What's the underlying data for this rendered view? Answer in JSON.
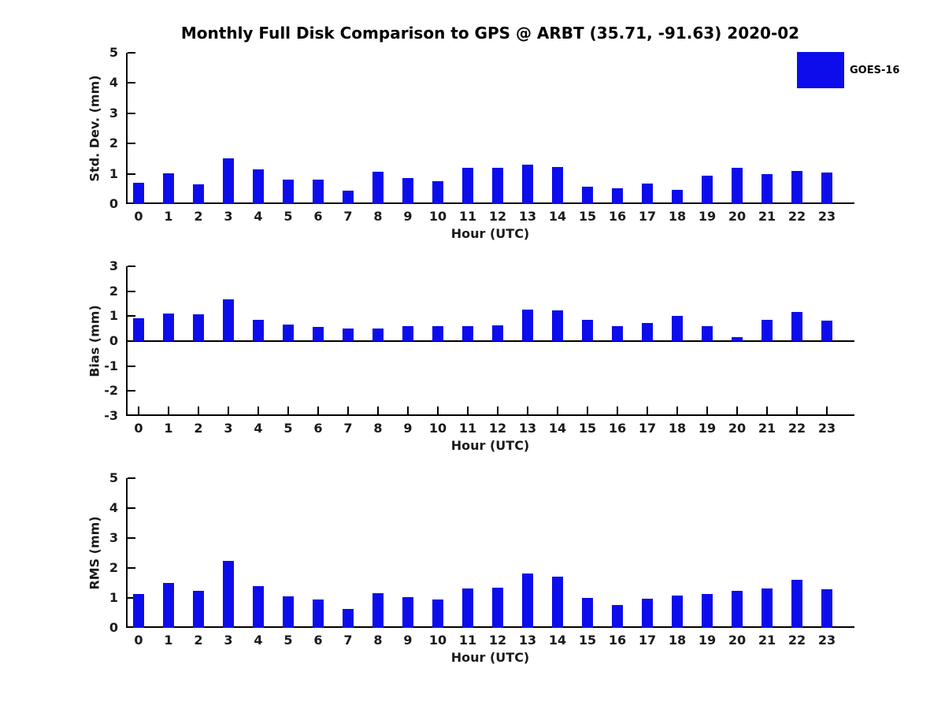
{
  "title": "Monthly Full Disk Comparison to GPS @ ARBT (35.71, -91.63) 2020-02",
  "legend": {
    "label": "GOES-16",
    "swatch_color": "#0d0dec",
    "position": "top-right"
  },
  "colors": {
    "bar": "#0d0dec",
    "axis": "#000000",
    "text": "#1a1a1a"
  },
  "chart_data": [
    {
      "type": "bar",
      "series_name": "GOES-16",
      "ylabel": "Std. Dev. (mm)",
      "xlabel": "Hour (UTC)",
      "ylim": [
        0,
        5
      ],
      "yticks": [
        0,
        1,
        2,
        3,
        4,
        5
      ],
      "grid": false,
      "categories": [
        0,
        1,
        2,
        3,
        4,
        5,
        6,
        7,
        8,
        9,
        10,
        11,
        12,
        13,
        14,
        15,
        16,
        17,
        18,
        19,
        20,
        21,
        22,
        23
      ],
      "values": [
        0.7,
        1.01,
        0.65,
        1.52,
        1.14,
        0.8,
        0.8,
        0.45,
        1.06,
        0.86,
        0.75,
        1.2,
        1.2,
        1.31,
        1.23,
        0.58,
        0.52,
        0.67,
        0.46,
        0.95,
        1.21,
        1.0,
        1.1,
        1.03
      ]
    },
    {
      "type": "bar",
      "series_name": "GOES-16",
      "ylabel": "Bias (mm)",
      "xlabel": "Hour (UTC)",
      "ylim": [
        -3,
        3
      ],
      "yticks": [
        -3,
        -2,
        -1,
        0,
        1,
        2,
        3
      ],
      "grid": false,
      "categories": [
        0,
        1,
        2,
        3,
        4,
        5,
        6,
        7,
        8,
        9,
        10,
        11,
        12,
        13,
        14,
        15,
        16,
        17,
        18,
        19,
        20,
        21,
        22,
        23
      ],
      "values": [
        0.92,
        1.12,
        1.08,
        1.67,
        0.86,
        0.67,
        0.56,
        0.49,
        0.52,
        0.59,
        0.61,
        0.59,
        0.64,
        1.26,
        1.22,
        0.86,
        0.59,
        0.73,
        1.01,
        0.59,
        0.15,
        0.86,
        1.16,
        0.83
      ]
    },
    {
      "type": "bar",
      "series_name": "GOES-16",
      "ylabel": "RMS (mm)",
      "xlabel": "Hour (UTC)",
      "ylim": [
        0,
        5
      ],
      "yticks": [
        0,
        1,
        2,
        3,
        4,
        5
      ],
      "grid": false,
      "categories": [
        0,
        1,
        2,
        3,
        4,
        5,
        6,
        7,
        8,
        9,
        10,
        11,
        12,
        13,
        14,
        15,
        16,
        17,
        18,
        19,
        20,
        21,
        22,
        23
      ],
      "values": [
        1.12,
        1.5,
        1.25,
        2.24,
        1.4,
        1.04,
        0.96,
        0.63,
        1.17,
        1.02,
        0.96,
        1.32,
        1.34,
        1.81,
        1.71,
        1.0,
        0.76,
        0.97,
        1.09,
        1.12,
        1.24,
        1.31,
        1.6,
        1.3
      ]
    }
  ]
}
